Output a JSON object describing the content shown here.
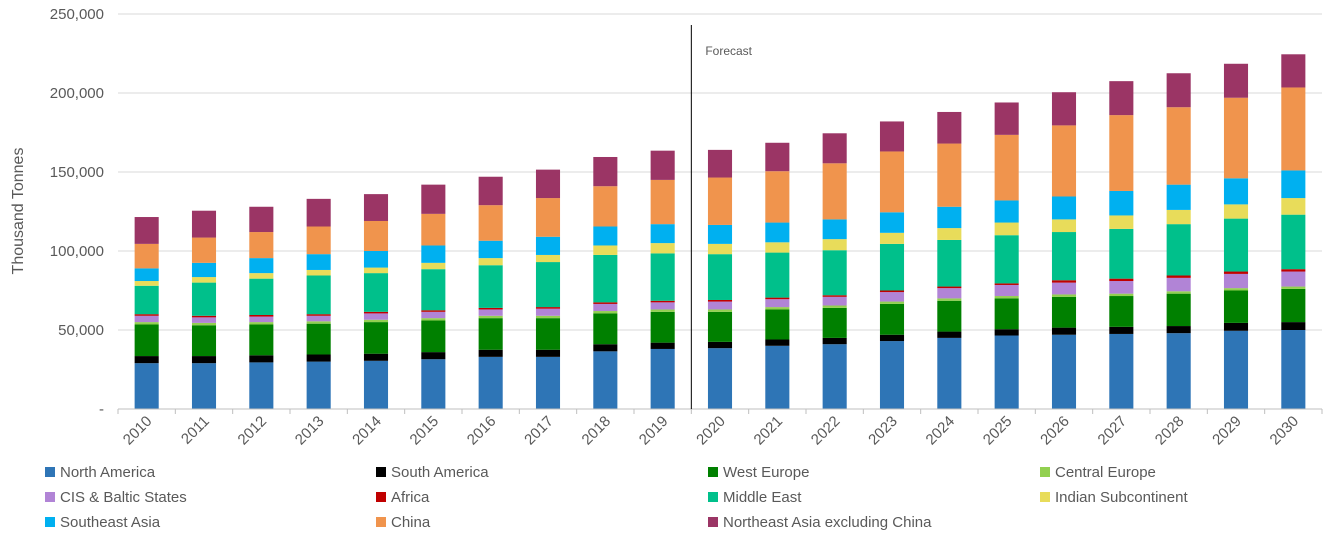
{
  "chart_data": {
    "type": "bar",
    "stacked": true,
    "ylabel": "Thousand Tonnes",
    "xlabel": "",
    "ylim": [
      0,
      250000
    ],
    "yticks": [
      {
        "value": 0,
        "label": "-"
      },
      {
        "value": 50000,
        "label": "50,000"
      },
      {
        "value": 100000,
        "label": "100,000"
      },
      {
        "value": 150000,
        "label": "150,000"
      },
      {
        "value": 200000,
        "label": "200,000"
      },
      {
        "value": 250000,
        "label": "250,000"
      }
    ],
    "grid": true,
    "legend_position": "bottom",
    "annotation": {
      "text": "Forecast",
      "at_category_boundary": "2019|2020"
    },
    "categories": [
      "2010",
      "2011",
      "2012",
      "2013",
      "2014",
      "2015",
      "2016",
      "2017",
      "2018",
      "2019",
      "2020",
      "2021",
      "2022",
      "2023",
      "2024",
      "2025",
      "2026",
      "2027",
      "2028",
      "2029",
      "2030"
    ],
    "series": [
      {
        "name": "North America",
        "color": "#2e75b6",
        "values": [
          29000,
          29000,
          29500,
          30000,
          30500,
          31500,
          33000,
          33000,
          36500,
          38000,
          38500,
          40000,
          41000,
          43000,
          45000,
          46500,
          47000,
          47500,
          48000,
          49500,
          50000
        ]
      },
      {
        "name": "South America",
        "color": "#000000",
        "values": [
          4500,
          4500,
          4500,
          4500,
          4500,
          4500,
          4500,
          4500,
          4500,
          4000,
          4000,
          4000,
          4000,
          4000,
          4000,
          4000,
          4500,
          4500,
          4500,
          5000,
          5000
        ]
      },
      {
        "name": "West Europe",
        "color": "#008000",
        "values": [
          20000,
          19500,
          19500,
          19500,
          20000,
          20000,
          20000,
          20000,
          19500,
          19500,
          19000,
          19000,
          19000,
          19500,
          19500,
          19500,
          19500,
          19500,
          20500,
          20500,
          21000
        ]
      },
      {
        "name": "Central Europe",
        "color": "#92d050",
        "values": [
          1500,
          1500,
          1500,
          1500,
          1500,
          1500,
          1500,
          1500,
          1500,
          1500,
          1500,
          1500,
          1500,
          1500,
          1500,
          1500,
          1500,
          1500,
          1500,
          1500,
          1500
        ]
      },
      {
        "name": "CIS & Baltic States",
        "color": "#b184d6",
        "values": [
          4000,
          3500,
          3500,
          3500,
          4000,
          4000,
          4000,
          4500,
          4500,
          4500,
          5000,
          5000,
          5500,
          6000,
          6500,
          7000,
          7500,
          8000,
          8500,
          9000,
          9500
        ]
      },
      {
        "name": "Africa",
        "color": "#c00000",
        "values": [
          1000,
          1000,
          1000,
          1000,
          1000,
          1000,
          1000,
          1000,
          1000,
          1000,
          1000,
          1000,
          1000,
          1000,
          1000,
          1000,
          1500,
          1500,
          1500,
          1500,
          1500
        ]
      },
      {
        "name": "Middle East",
        "color": "#00c08b",
        "values": [
          18000,
          21000,
          23000,
          24500,
          24500,
          26000,
          27000,
          28500,
          30000,
          30000,
          29000,
          28500,
          28500,
          29500,
          29500,
          30500,
          30500,
          31500,
          32500,
          33500,
          34500
        ]
      },
      {
        "name": "Indian Subcontinent",
        "color": "#e8dc5a",
        "values": [
          3000,
          3500,
          3500,
          3500,
          3500,
          4000,
          4500,
          4500,
          6000,
          6500,
          6500,
          6500,
          7000,
          7000,
          7500,
          8000,
          8000,
          8500,
          9000,
          9000,
          10500
        ]
      },
      {
        "name": "Southeast Asia",
        "color": "#00b0f0",
        "values": [
          8000,
          9000,
          9500,
          10000,
          10500,
          11000,
          11000,
          11500,
          12000,
          12000,
          12000,
          12500,
          12500,
          13000,
          13500,
          14000,
          14500,
          15500,
          16000,
          16500,
          17500
        ]
      },
      {
        "name": "China",
        "color": "#f0944d",
        "values": [
          15500,
          16000,
          16500,
          17500,
          19000,
          20000,
          22500,
          24500,
          25500,
          28000,
          30000,
          32500,
          35500,
          38500,
          40000,
          41500,
          45000,
          48000,
          49000,
          51000,
          52500
        ]
      },
      {
        "name": "Northeast Asia excluding China",
        "color": "#9b3565",
        "values": [
          17000,
          17000,
          16000,
          17500,
          17000,
          18500,
          18000,
          18000,
          18500,
          18500,
          17500,
          18000,
          19000,
          19000,
          20000,
          20500,
          21000,
          21500,
          21500,
          21500,
          21000
        ]
      }
    ]
  }
}
